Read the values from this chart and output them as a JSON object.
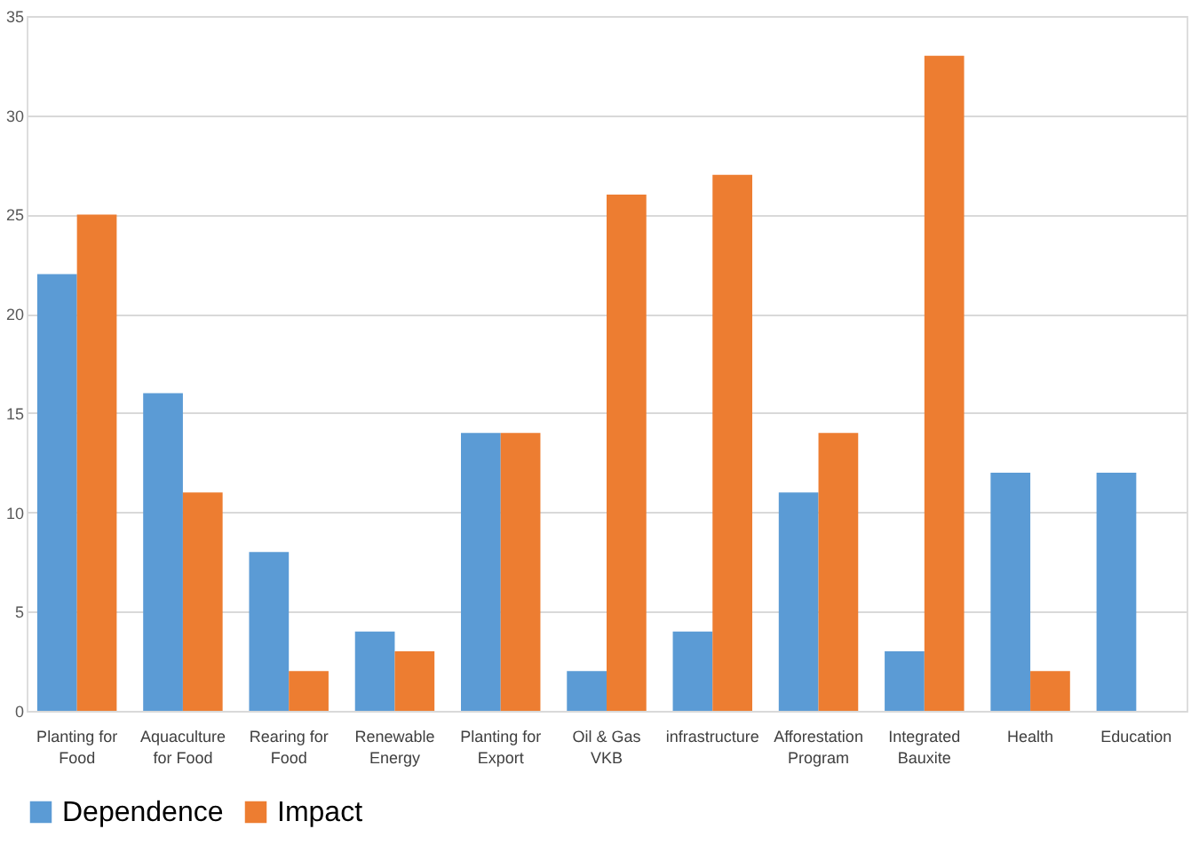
{
  "chart_data": {
    "type": "bar",
    "categories": [
      "Planting for Food",
      "Aquaculture for Food",
      "Rearing for Food",
      "Renewable Energy",
      "Planting for Export",
      "Oil & Gas VKB",
      "infrastructure",
      "Afforestation Program",
      "Integrated Bauxite",
      "Health",
      "Education"
    ],
    "series": [
      {
        "name": "Dependence",
        "color": "#5b9bd5",
        "values": [
          22,
          16,
          8,
          4,
          14,
          2,
          4,
          11,
          3,
          12,
          12
        ]
      },
      {
        "name": "Impact",
        "color": "#ed7d31",
        "values": [
          25,
          11,
          2,
          3,
          14,
          26,
          27,
          14,
          33,
          2,
          0
        ]
      }
    ],
    "ylim": [
      0,
      35
    ],
    "yticks": [
      0,
      5,
      10,
      15,
      20,
      25,
      30,
      35
    ],
    "grid": "y",
    "legend": "bottom"
  }
}
